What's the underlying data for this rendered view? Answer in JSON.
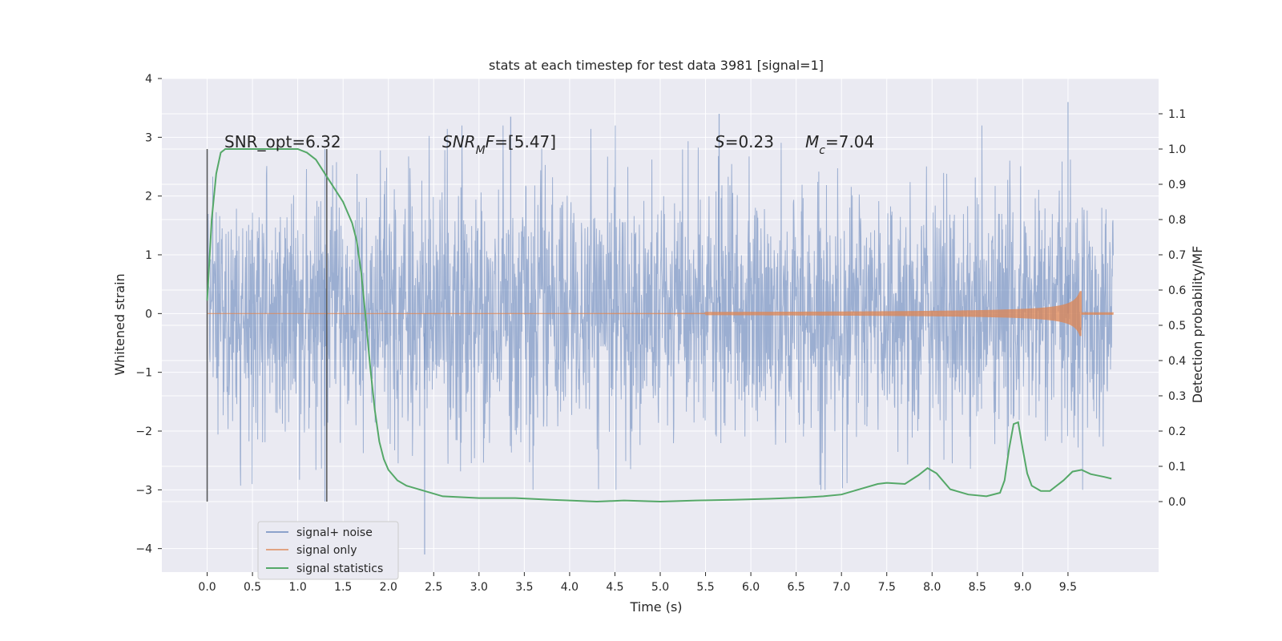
{
  "chart_data": {
    "type": "line",
    "title": "stats at each timestep for test data 3981 [signal=1]",
    "xlabel": "Time (s)",
    "ylabel_left": "Whitened strain",
    "ylabel_right": "Detection probability/MF",
    "xlim": [
      -0.5,
      10.5
    ],
    "ylim_left": [
      -4.4,
      4.0
    ],
    "ylim_right": [
      -0.2,
      1.2
    ],
    "x_ticks": [
      0.0,
      0.5,
      1.0,
      1.5,
      2.0,
      2.5,
      3.0,
      3.5,
      4.0,
      4.5,
      5.0,
      5.5,
      6.0,
      6.5,
      7.0,
      7.5,
      8.0,
      8.5,
      9.0,
      9.5
    ],
    "x_tick_labels": [
      "0.0",
      "0.5",
      "1.0",
      "1.5",
      "2.0",
      "2.5",
      "3.0",
      "3.5",
      "4.0",
      "4.5",
      "5.0",
      "5.5",
      "6.0",
      "6.5",
      "7.0",
      "7.5",
      "8.0",
      "8.5",
      "9.0",
      "9.5"
    ],
    "y_left_ticks": [
      -4,
      -3,
      -2,
      -1,
      0,
      1,
      2,
      3,
      4
    ],
    "y_left_tick_labels": [
      "−4",
      "−3",
      "−2",
      "−1",
      "0",
      "1",
      "2",
      "3",
      "4"
    ],
    "y_right_ticks": [
      0.0,
      0.1,
      0.2,
      0.3,
      0.4,
      0.5,
      0.6,
      0.7,
      0.8,
      0.9,
      1.0,
      1.1
    ],
    "y_right_tick_labels": [
      "0.0",
      "0.1",
      "0.2",
      "0.3",
      "0.4",
      "0.5",
      "0.6",
      "0.7",
      "0.8",
      "0.9",
      "1.0",
      "1.1"
    ],
    "grid": true,
    "background": "#eaeaf2",
    "legend_location": "lower-left",
    "series": [
      {
        "name": "signal+ noise",
        "axis": "left",
        "color": "#4c72b0",
        "alpha": 0.5,
        "x_range": [
          0.0,
          10.0
        ],
        "approx_envelope": [
          -3.0,
          3.2
        ],
        "extreme_points": [
          [
            2.4,
            -4.1
          ],
          [
            9.5,
            3.6
          ],
          [
            5.65,
            3.4
          ],
          [
            3.35,
            3.35
          ],
          [
            0.0,
            2.8
          ],
          [
            1.3,
            2.8
          ],
          [
            0.0,
            -3.2
          ],
          [
            1.3,
            -3.2
          ]
        ]
      },
      {
        "name": "signal only",
        "axis": "left",
        "color": "#dd8452",
        "x_range": [
          0.0,
          10.0
        ],
        "chirp_start": 5.5,
        "peak_time": 9.65,
        "peak_amplitude": 0.52,
        "post_merger_amplitude": 0.02
      },
      {
        "name": "signal statistics",
        "axis": "right",
        "color": "#55a868",
        "x": [
          0.0,
          0.05,
          0.1,
          0.15,
          0.2,
          0.3,
          0.5,
          0.8,
          1.0,
          1.1,
          1.2,
          1.3,
          1.4,
          1.5,
          1.6,
          1.65,
          1.7,
          1.75,
          1.8,
          1.85,
          1.9,
          1.95,
          2.0,
          2.05,
          2.1,
          2.2,
          2.4,
          2.6,
          3.0,
          3.4,
          3.8,
          4.3,
          4.6,
          5.0,
          5.4,
          5.8,
          6.2,
          6.6,
          6.8,
          7.0,
          7.2,
          7.4,
          7.5,
          7.7,
          7.85,
          7.95,
          8.05,
          8.2,
          8.4,
          8.6,
          8.75,
          8.8,
          8.85,
          8.9,
          8.95,
          9.0,
          9.05,
          9.1,
          9.2,
          9.3,
          9.45,
          9.55,
          9.65,
          9.75,
          9.9,
          9.98
        ],
        "values": [
          0.57,
          0.8,
          0.93,
          0.99,
          1.0,
          1.0,
          1.0,
          1.0,
          1.0,
          0.99,
          0.97,
          0.93,
          0.89,
          0.85,
          0.79,
          0.74,
          0.65,
          0.52,
          0.38,
          0.26,
          0.17,
          0.12,
          0.09,
          0.075,
          0.06,
          0.045,
          0.03,
          0.015,
          0.01,
          0.01,
          0.005,
          0.0,
          0.003,
          0.0,
          0.003,
          0.005,
          0.008,
          0.012,
          0.015,
          0.02,
          0.035,
          0.05,
          0.053,
          0.05,
          0.075,
          0.095,
          0.08,
          0.035,
          0.02,
          0.015,
          0.025,
          0.06,
          0.15,
          0.22,
          0.225,
          0.15,
          0.08,
          0.045,
          0.03,
          0.03,
          0.06,
          0.085,
          0.09,
          0.078,
          0.07,
          0.065
        ]
      }
    ],
    "vertical_lines": [
      0.0,
      1.32
    ],
    "annotations": [
      {
        "label": "SNR_opt=6.32",
        "parts": [
          {
            "t": "SNR_opt=6.32",
            "italic": false
          }
        ]
      },
      {
        "label": "SNR_MF=[5.47]",
        "parts": [
          {
            "t": "SNR",
            "italic": true
          },
          {
            "t": "M",
            "italic": true,
            "sub": true
          },
          {
            "t": "F",
            "italic": true
          },
          {
            "t": "=[5.47]",
            "italic": false
          }
        ]
      },
      {
        "label": "S=0.23",
        "parts": [
          {
            "t": "S",
            "italic": true
          },
          {
            "t": "=0.23",
            "italic": false
          }
        ]
      },
      {
        "label": "M_c=7.04",
        "parts": [
          {
            "t": "M",
            "italic": true
          },
          {
            "t": "c",
            "italic": true,
            "sub": true
          },
          {
            "t": "=7.04",
            "italic": false
          }
        ]
      }
    ]
  }
}
